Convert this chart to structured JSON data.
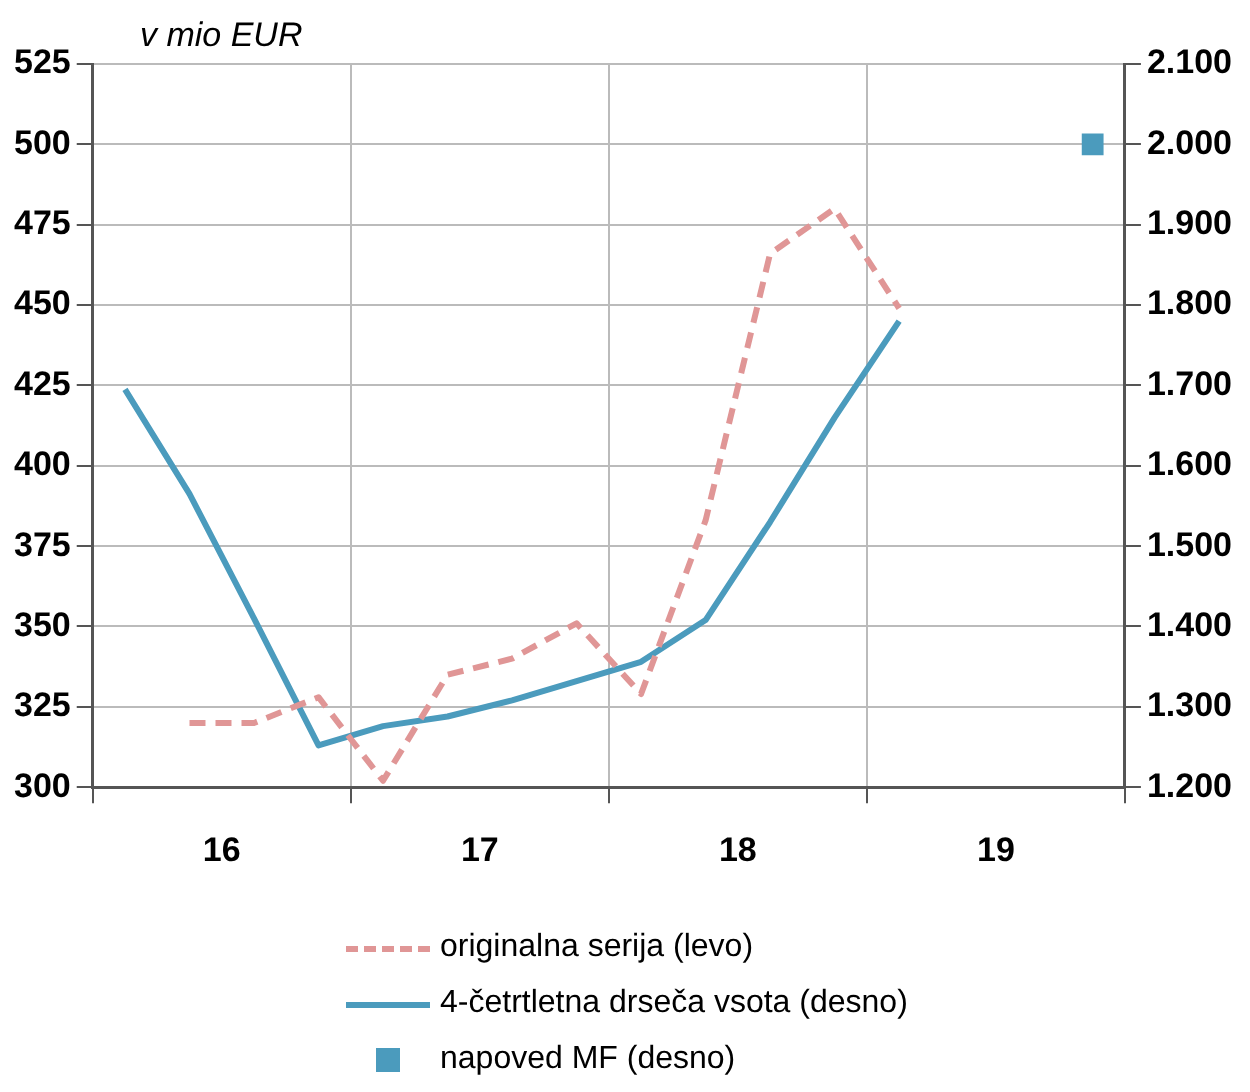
{
  "chart_data": {
    "type": "line",
    "ylabel": "v mio EUR",
    "xlim": [
      15.5,
      19.5
    ],
    "xticks": [
      {
        "value": 15.5,
        "label": null
      },
      {
        "value": 16,
        "label": "16"
      },
      {
        "value": 16.5,
        "label": null
      },
      {
        "value": 17,
        "label": "17"
      },
      {
        "value": 17.5,
        "label": null
      },
      {
        "value": 18,
        "label": "18"
      },
      {
        "value": 18.5,
        "label": null
      },
      {
        "value": 19,
        "label": "19"
      },
      {
        "value": 19.5,
        "label": null
      }
    ],
    "ylim": [
      300,
      525
    ],
    "yticks": [
      300,
      325,
      350,
      375,
      400,
      425,
      450,
      475,
      500,
      525
    ],
    "y2lim": [
      1.2,
      2.1
    ],
    "y2ticks": [
      {
        "value": 1.2,
        "label": "1.200"
      },
      {
        "value": 1.3,
        "label": "1.300"
      },
      {
        "value": 1.4,
        "label": "1.400"
      },
      {
        "value": 1.5,
        "label": "1.500"
      },
      {
        "value": 1.6,
        "label": "1.600"
      },
      {
        "value": 1.7,
        "label": "1.700"
      },
      {
        "value": 1.8,
        "label": "1.800"
      },
      {
        "value": 1.9,
        "label": "1.900"
      },
      {
        "value": 2.0,
        "label": "2.000"
      },
      {
        "value": 2.1,
        "label": "2.100"
      }
    ],
    "x": [
      15.625,
      15.875,
      16.125,
      16.375,
      16.625,
      16.875,
      17.125,
      17.375,
      17.625,
      17.875,
      18.125,
      18.375,
      18.625,
      18.875,
      19.125,
      19.375
    ],
    "grid": true,
    "legend": "bottom",
    "marker": "none",
    "series": [
      {
        "name": "originalna serija (levo)",
        "color": "#e09696",
        "line_style": "dashed",
        "values": [
          null,
          320,
          320,
          328,
          302,
          335,
          340,
          351,
          329,
          383,
          466,
          480,
          449,
          null,
          null,
          null
        ]
      },
      {
        "name": "4-četrtletna drseča vsota (desno)",
        "color": "#4b9bbd",
        "line_style": "solid",
        "axis": "y2",
        "values": [
          1.695,
          1.565,
          1.41,
          1.252,
          1.276,
          1.288,
          1.308,
          1.332,
          1.356,
          1.408,
          1.53,
          1.66,
          1.78,
          null,
          null,
          null
        ]
      },
      {
        "name": "napoved MF (desno)",
        "type": "scatter",
        "marker": "square",
        "color": "#4b9bbd",
        "axis": "y2",
        "values": [
          null,
          null,
          null,
          null,
          null,
          null,
          null,
          null,
          null,
          null,
          null,
          null,
          null,
          null,
          null,
          2.0
        ]
      }
    ]
  }
}
